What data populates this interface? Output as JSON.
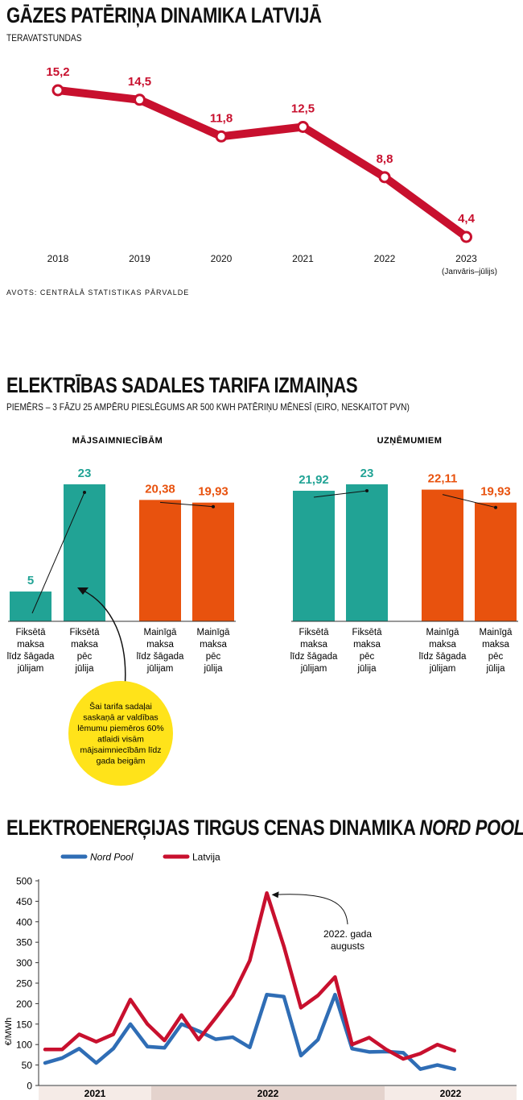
{
  "chart1": {
    "title": "GĀZES PATĒRIŅA DINAMIKA LATVIJĀ",
    "unit": "TERAVATSTUNDAS",
    "source": "AVOTS: CENTRĀLĀ STATISTIKAS PĀRVALDE",
    "color": "#c8102e"
  },
  "chart2": {
    "title": "ELEKTRĪBAS SADALES TARIFA IZMAIŅAS",
    "subtitle": "PIEMĒRS – 3 FĀZU 25 AMPĒRU PIESLĒGUMS AR 500 KWH PATĒRIŅU MĒNESĪ (EIRO, NESKAITOT PVN)",
    "colors": {
      "fixed": "#21a395",
      "variable": "#e8520e",
      "note_bg": "#ffe31a"
    },
    "note": [
      "Šai tarifa sadaļai",
      "saskaņā ar valdības",
      "lēmumu piemēros 60%",
      "atlaidi visām",
      "mājsaimniecībām līdz",
      "gada beigām"
    ]
  },
  "chart3": {
    "title": "ELEKTROENERĢIJAS TIRGUS CENAS DINAMIKA ",
    "title_italic": "NORD POOL",
    "ylabel": "€/MWh",
    "annotation": [
      "2022. gada",
      "augusts"
    ],
    "year_labels": [
      "2021",
      "2022",
      "2022"
    ]
  },
  "chart_data": [
    {
      "type": "line",
      "title": "GĀZES PATĒRIŅA DINAMIKA LATVIJĀ",
      "ylabel": "TERAVATSTUNDAS",
      "categories": [
        "2018",
        "2019",
        "2020",
        "2021",
        "2022",
        "2023"
      ],
      "category_notes": [
        "",
        "",
        "",
        "",
        "",
        "(Janvāris–jūlijs)"
      ],
      "values": [
        15.2,
        14.5,
        11.8,
        12.5,
        8.8,
        4.4
      ],
      "value_labels": [
        "15,2",
        "14,5",
        "11,8",
        "12,5",
        "8,8",
        "4,4"
      ],
      "ylim": [
        0,
        16
      ],
      "grid": false
    },
    {
      "type": "bar",
      "title": "MĀJSAIMNIECĪBĀM",
      "categories": [
        "Fiksētā maksa līdz šāgada jūlijam",
        "Fiksētā maksa pēc jūlija",
        "Mainīgā maksa līdz šāgada jūlijam",
        "Mainīgā maksa pēc jūlija"
      ],
      "category_lines": [
        [
          "Fiksētā",
          "maksa",
          "līdz šāgada",
          "jūlijam"
        ],
        [
          "Fiksētā",
          "maksa",
          "pēc",
          "jūlija"
        ],
        [
          "Mainīgā",
          "maksa",
          "līdz šāgada",
          "jūlijam"
        ],
        [
          "Mainīgā",
          "maksa",
          "pēc",
          "jūlija"
        ]
      ],
      "values": [
        5,
        23,
        20.38,
        19.93
      ],
      "value_labels": [
        "5",
        "23",
        "20,38",
        "19,93"
      ],
      "kinds": [
        "fixed",
        "fixed",
        "variable",
        "variable"
      ],
      "ylim": [
        0,
        23
      ]
    },
    {
      "type": "bar",
      "title": "UZŅĒMUMIEM",
      "categories": [
        "Fiksētā maksa līdz šāgada jūlijam",
        "Fiksētā maksa pēc jūlija",
        "Mainīgā maksa līdz šāgada jūlijam",
        "Mainīgā maksa pēc jūlija"
      ],
      "category_lines": [
        [
          "Fiksētā",
          "maksa",
          "līdz šāgada",
          "jūlijam"
        ],
        [
          "Fiksētā",
          "maksa",
          "pēc",
          "jūlija"
        ],
        [
          "Mainīgā",
          "maksa",
          "līdz šāgada",
          "jūlijam"
        ],
        [
          "Mainīgā",
          "maksa",
          "pēc",
          "jūlija"
        ]
      ],
      "values": [
        21.92,
        23,
        22.11,
        19.93
      ],
      "value_labels": [
        "21,92",
        "23",
        "22,11",
        "19,93"
      ],
      "kinds": [
        "fixed",
        "fixed",
        "variable",
        "variable"
      ],
      "ylim": [
        0,
        23
      ]
    },
    {
      "type": "line",
      "title": "ELEKTROENERĢIJAS TIRGUS CENAS DINAMIKA NORD POOL",
      "ylabel": "€/MWh",
      "ylim": [
        0,
        500
      ],
      "yticks": [
        0,
        50,
        100,
        150,
        200,
        250,
        300,
        350,
        400,
        450,
        500
      ],
      "legend_position": "top-left",
      "series": [
        {
          "name": "Nord Pool",
          "color": "#2f6db5",
          "values": [
            55,
            67,
            90,
            55,
            90,
            150,
            95,
            92,
            150,
            133,
            113,
            118,
            93,
            222,
            217,
            73,
            112,
            222,
            90,
            82,
            83,
            80,
            40,
            50,
            40
          ]
        },
        {
          "name": "Latvija",
          "color": "#c8102e",
          "values": [
            88,
            88,
            125,
            107,
            125,
            210,
            150,
            110,
            172,
            112,
            165,
            220,
            305,
            470,
            340,
            190,
            220,
            265,
            100,
            117,
            88,
            65,
            78,
            100,
            85
          ]
        }
      ],
      "year_bands": [
        {
          "label": "2021",
          "from": 0,
          "to": 5
        },
        {
          "label": "2022",
          "from": 5,
          "to": 17
        },
        {
          "label": "2022",
          "from": 17,
          "to": 24
        }
      ],
      "grid": false
    }
  ]
}
